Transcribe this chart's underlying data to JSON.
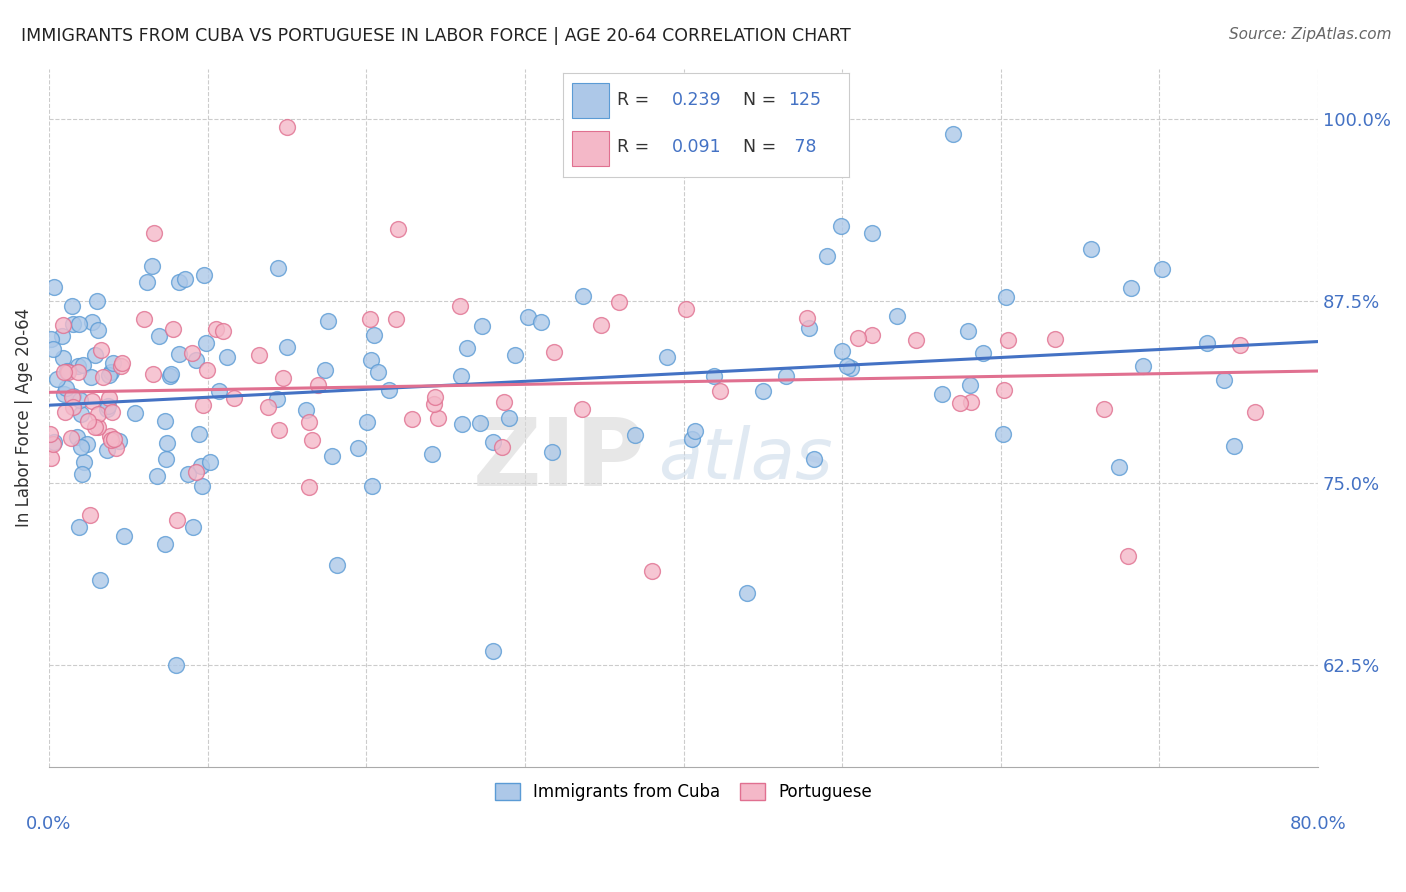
{
  "title": "IMMIGRANTS FROM CUBA VS PORTUGUESE IN LABOR FORCE | AGE 20-64 CORRELATION CHART",
  "source": "Source: ZipAtlas.com",
  "ylabel": "In Labor Force | Age 20-64",
  "ytick_labels": [
    "62.5%",
    "75.0%",
    "87.5%",
    "100.0%"
  ],
  "ytick_values": [
    0.625,
    0.75,
    0.875,
    1.0
  ],
  "xmin": 0.0,
  "xmax": 0.8,
  "ymin": 0.555,
  "ymax": 1.035,
  "cuba_color": "#adc8e8",
  "cuba_edge_color": "#5b9bd5",
  "portuguese_color": "#f4b8c8",
  "portuguese_edge_color": "#e07090",
  "cuba_line_color": "#4472c4",
  "portuguese_line_color": "#e07090",
  "background_color": "#ffffff",
  "watermark_zip": "ZIP",
  "watermark_atlas": "atlas",
  "legend_label_cuba": "Immigrants from Cuba",
  "legend_label_port": "Portuguese"
}
